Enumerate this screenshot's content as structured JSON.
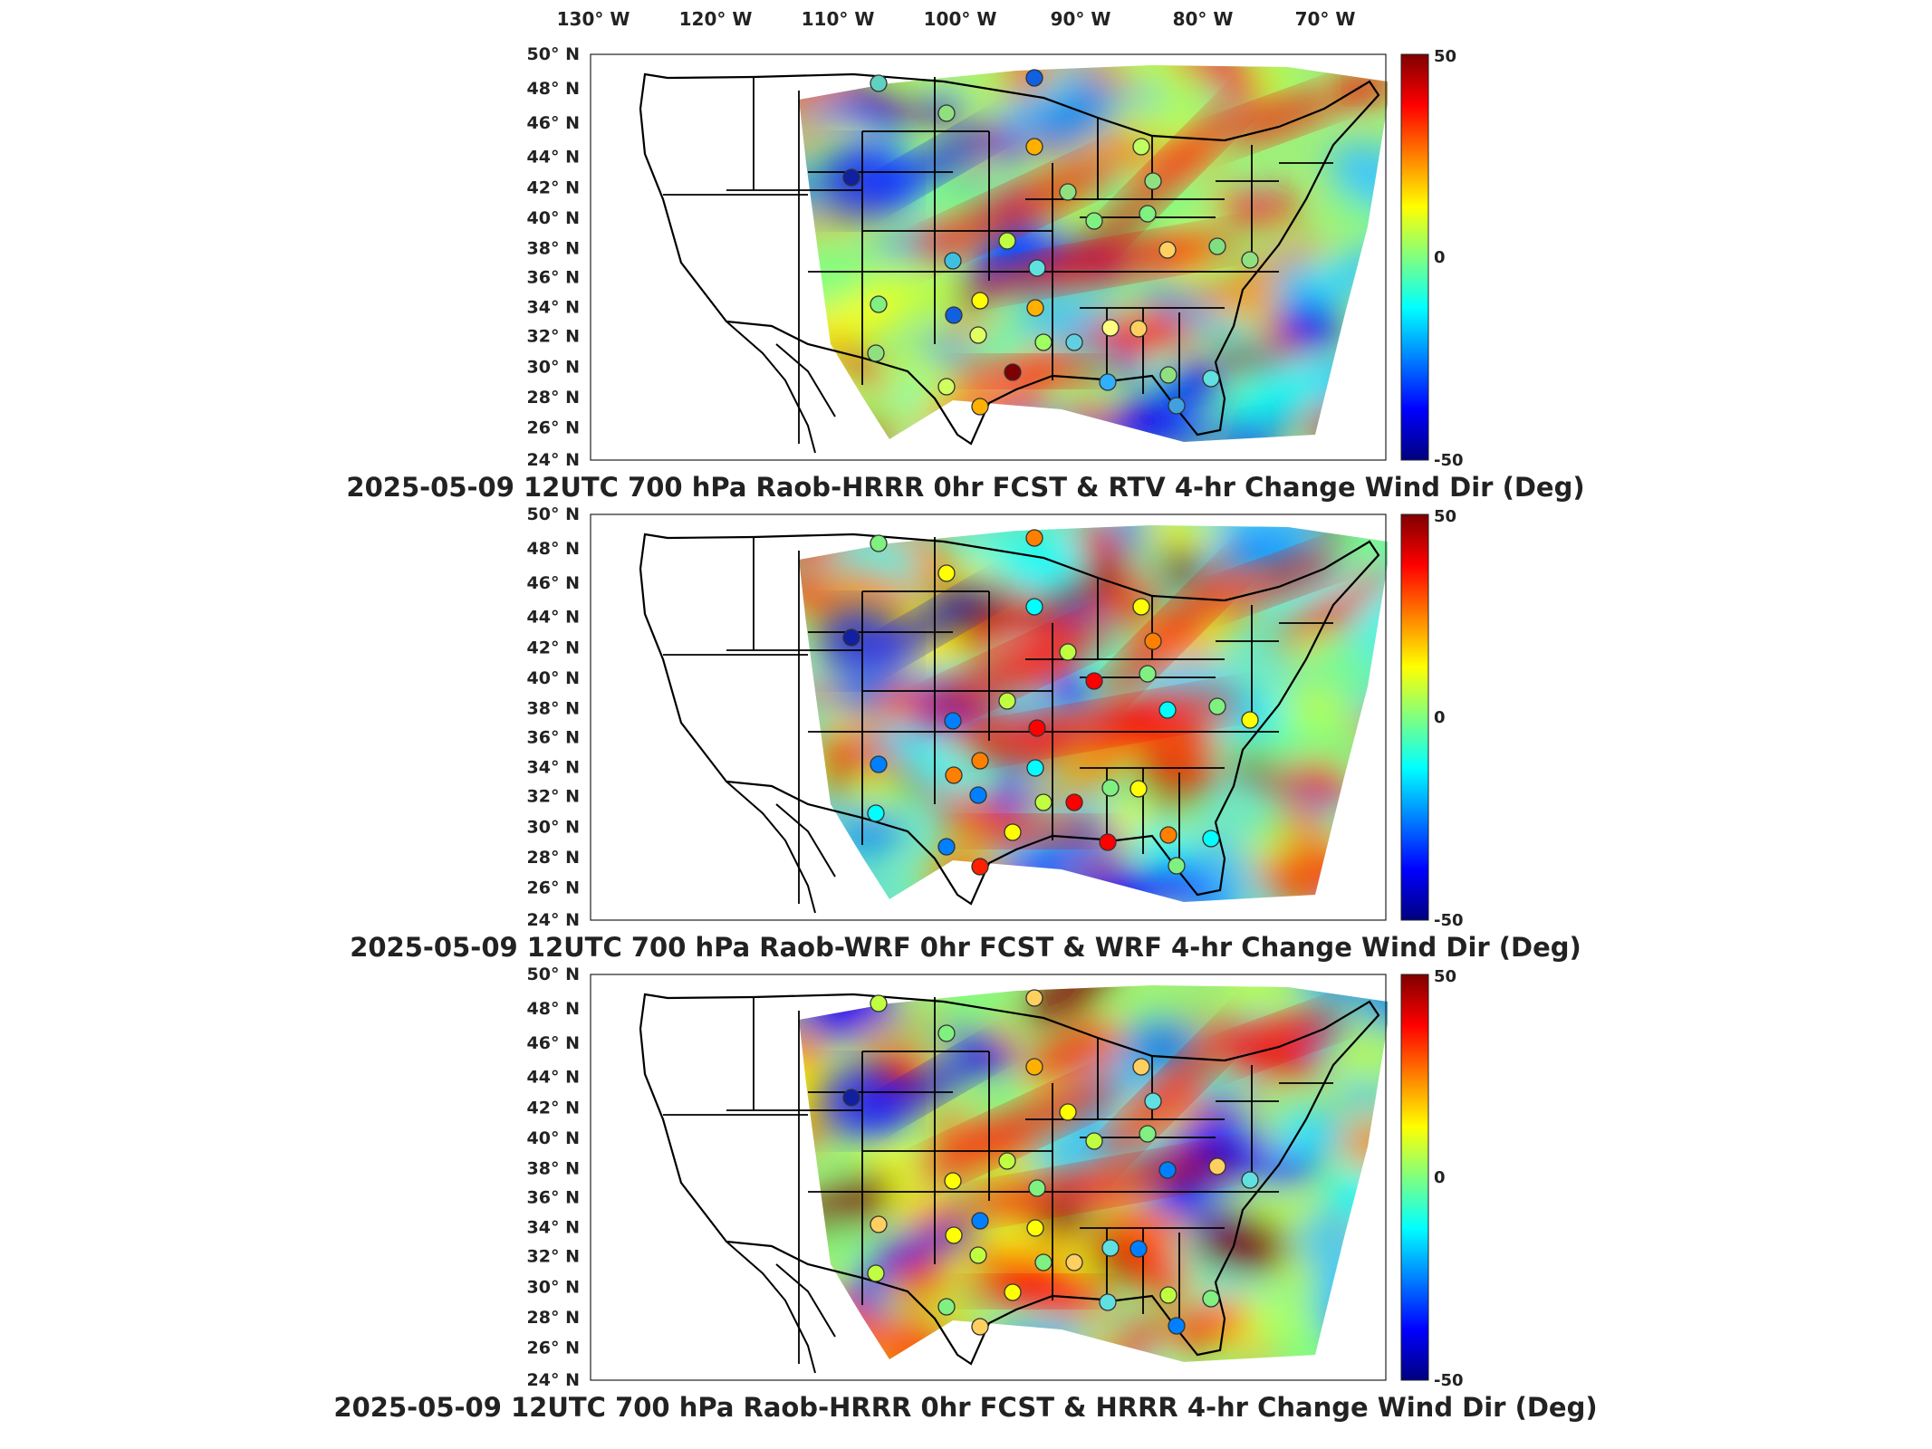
{
  "lon_ticks": [
    "130° W",
    "120° W",
    "110° W",
    "100° W",
    "90° W",
    "80° W",
    "70° W"
  ],
  "lat_ticks": [
    "50° N",
    "48° N",
    "46° N",
    "44° N",
    "42° N",
    "40° N",
    "38° N",
    "36° N",
    "34° N",
    "32° N",
    "30° N",
    "28° N",
    "26° N",
    "24° N"
  ],
  "colorbar": {
    "max_label": "50",
    "mid_label": "0",
    "min_label": "-50",
    "colors": [
      "#00007f",
      "#0000ff",
      "#0080ff",
      "#00ffff",
      "#80ff80",
      "#ffff00",
      "#ff8000",
      "#ff0000",
      "#7f0000"
    ]
  },
  "panels": [
    {
      "title": "2025-05-09 12UTC 700 hPa Raob-HRRR 0hr FCST & RTV 4-hr Change Wind Dir (Deg)"
    },
    {
      "title": "2025-05-09 12UTC 700 hPa Raob-WRF 0hr FCST & WRF 4-hr Change Wind Dir (Deg)"
    },
    {
      "title": "2025-05-09 12UTC 700 hPa Raob-HRRR 0hr FCST & HRRR 4-hr Change Wind Dir (Deg)"
    }
  ]
}
